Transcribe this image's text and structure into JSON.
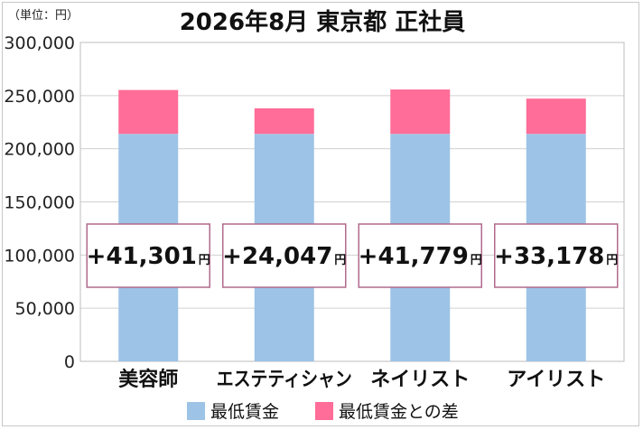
{
  "chart_data": {
    "type": "bar",
    "stacked": true,
    "title": "2026年8月 東京都 正社員",
    "unit_label": "（単位：円）",
    "categories": [
      "美容師",
      "エステティシャン",
      "ネイリスト",
      "アイリスト"
    ],
    "series": [
      {
        "name": "最低賃金",
        "values": [
          214000,
          214000,
          214000,
          214000
        ],
        "color": "#9dc3e6"
      },
      {
        "name": "最低賃金との差",
        "values": [
          41301,
          24047,
          41779,
          33178
        ],
        "color": "#ff6d98"
      }
    ],
    "difference_labels": [
      "+41,301",
      "+24,047",
      "+41,779",
      "+33,178"
    ],
    "difference_unit": "円",
    "ylim": [
      0,
      300000
    ],
    "yticks": [
      "0",
      "50,000",
      "100,000",
      "150,000",
      "200,000",
      "250,000",
      "300,000"
    ],
    "grid": true,
    "legend_position": "bottom",
    "label_box_border": "#b06a8c"
  }
}
